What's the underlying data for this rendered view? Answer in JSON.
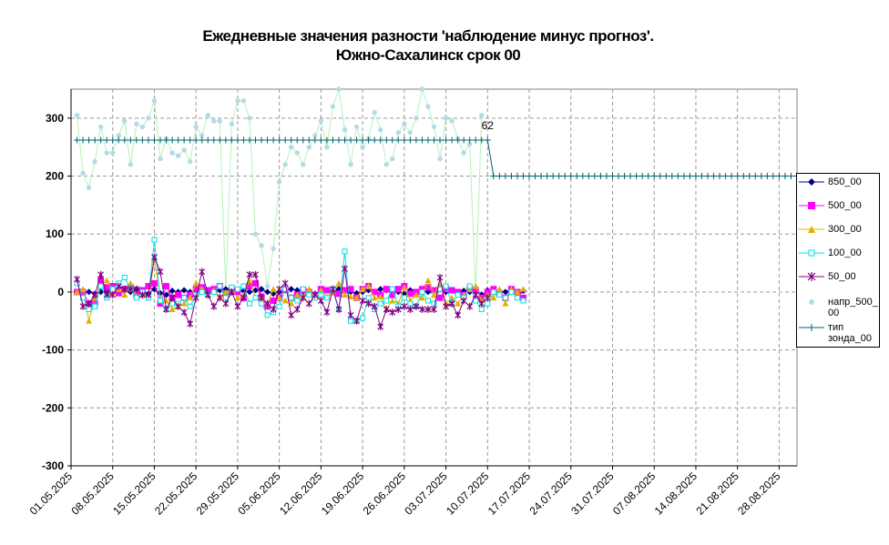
{
  "chart_data": {
    "type": "line",
    "title": "Ежедневные значения разности 'наблюдение минус прогноз'.",
    "subtitle": "Южно-Сахалинск      срок 00",
    "xlabel": "",
    "ylabel": "",
    "ylim": [
      -300,
      350
    ],
    "yticks": [
      "-300",
      "-200",
      "-100",
      "0",
      "100",
      "200",
      "300"
    ],
    "x_start": "01.05.2025",
    "x_end": "31.08.2025",
    "xticks": [
      "01.05.2025",
      "08.05.2025",
      "15.05.2025",
      "22.05.2025",
      "29.05.2025",
      "05.06.2025",
      "12.06.2025",
      "19.06.2025",
      "26.06.2025",
      "03.07.2025",
      "10.07.2025",
      "17.07.2025",
      "24.07.2025",
      "31.07.2025",
      "07.08.2025",
      "14.08.2025",
      "21.08.2025",
      "28.08.2025"
    ],
    "grid": true,
    "legend": "right",
    "annotation": "62",
    "series": [
      {
        "name": "850_00",
        "color": "#000080",
        "marker": "diamond",
        "values": [
          0,
          -2,
          0,
          -3,
          0,
          2,
          5,
          0,
          3,
          0,
          5,
          3,
          -3,
          5,
          -2,
          -5,
          2,
          0,
          3,
          0,
          3,
          0,
          -2,
          0,
          3,
          5,
          3,
          0,
          2,
          0,
          3,
          5,
          0,
          -3,
          0,
          3,
          5,
          3,
          0,
          2,
          -3,
          0,
          3,
          0,
          5,
          3,
          0,
          -2,
          0,
          3,
          0,
          5,
          3,
          2,
          0,
          -3,
          3,
          0,
          2,
          0,
          3,
          5,
          0,
          3,
          0,
          2,
          0,
          3,
          -5,
          3,
          0,
          2,
          0,
          5,
          -8,
          2
        ]
      },
      {
        "name": "500_00",
        "color": "#ff00ff",
        "marker": "square",
        "values": [
          0,
          0,
          -20,
          -20,
          20,
          8,
          10,
          -2,
          5,
          8,
          -5,
          3,
          10,
          15,
          -20,
          10,
          -10,
          -5,
          -10,
          -5,
          5,
          8,
          3,
          5,
          10,
          -5,
          3,
          0,
          -10,
          10,
          15,
          -8,
          -25,
          -15,
          -10,
          5,
          -10,
          -5,
          3,
          0,
          -5,
          5,
          3,
          0,
          -3,
          3,
          5,
          -10,
          5,
          10,
          0,
          -5,
          5,
          -5,
          5,
          10,
          -3,
          0,
          5,
          8,
          3,
          -10,
          5,
          3,
          0,
          -5,
          5,
          3,
          -10,
          0,
          5,
          -3,
          -10,
          5,
          0,
          -10
        ]
      },
      {
        "name": "300_00",
        "color": "#e0b000",
        "marker": "triangle",
        "values": [
          0,
          5,
          -50,
          -10,
          10,
          20,
          0,
          5,
          -5,
          15,
          -8,
          -5,
          -10,
          55,
          -10,
          -15,
          -30,
          -25,
          -20,
          -10,
          15,
          5,
          -5,
          3,
          -8,
          0,
          5,
          -10,
          -5,
          20,
          -10,
          -10,
          -20,
          5,
          -10,
          -15,
          -20,
          -5,
          -8,
          5,
          -10,
          3,
          -8,
          0,
          15,
          -5,
          -8,
          -10,
          5,
          10,
          -10,
          -8,
          -30,
          -15,
          -20,
          8,
          -15,
          -5,
          -10,
          20,
          -5,
          15,
          -20,
          -10,
          -20,
          -5,
          5,
          10,
          -15,
          -5,
          -10,
          5,
          -20,
          5,
          0,
          5
        ]
      },
      {
        "name": "100_00",
        "color": "#00e0e0",
        "marker": "square-open",
        "values": [
          15,
          -10,
          -30,
          -25,
          10,
          -10,
          5,
          15,
          25,
          5,
          -10,
          0,
          -10,
          90,
          -15,
          -30,
          -20,
          -20,
          -10,
          -25,
          -5,
          0,
          -5,
          0,
          10,
          -10,
          8,
          5,
          10,
          -20,
          -10,
          -20,
          -40,
          -35,
          -25,
          5,
          -10,
          -15,
          5,
          -5,
          -10,
          -5,
          -10,
          5,
          -30,
          70,
          -50,
          -50,
          -45,
          -10,
          -30,
          -20,
          -15,
          5,
          -25,
          -10,
          -20,
          -25,
          0,
          -15,
          -20,
          5,
          10,
          -20,
          -5,
          -10,
          10,
          -15,
          -30,
          -20,
          0,
          -5,
          -10,
          0,
          -10,
          -15
        ]
      },
      {
        "name": "50_00",
        "color": "#800080",
        "marker": "star",
        "values": [
          22,
          -25,
          -20,
          -5,
          30,
          -5,
          -5,
          10,
          5,
          5,
          5,
          -5,
          -5,
          60,
          35,
          -30,
          -10,
          -25,
          -35,
          -55,
          -10,
          35,
          -5,
          -25,
          -10,
          -20,
          0,
          -25,
          -10,
          30,
          30,
          -10,
          -20,
          -30,
          5,
          15,
          -40,
          -30,
          -10,
          -20,
          -5,
          -15,
          -35,
          5,
          -30,
          40,
          -40,
          -50,
          -15,
          -20,
          -25,
          -60,
          -30,
          -35,
          -30,
          -25,
          -30,
          -25,
          -30,
          -30,
          -30,
          25,
          -25,
          -20,
          -40,
          -15,
          -25,
          -5,
          -20,
          -10
        ]
      },
      {
        "name": "напр_500_00",
        "color": "#b0dce8",
        "marker": "dot",
        "values": [
          305,
          205,
          180,
          225,
          285,
          240,
          240,
          270,
          295,
          220,
          290,
          285,
          300,
          330,
          230,
          265,
          240,
          235,
          245,
          225,
          285,
          270,
          305,
          295,
          295,
          0,
          290,
          330,
          330,
          300,
          100,
          80,
          10,
          75,
          190,
          220,
          250,
          240,
          220,
          250,
          270,
          295,
          250,
          320,
          350,
          280,
          220,
          285,
          250,
          265,
          310,
          280,
          220,
          230,
          275,
          290,
          275,
          300,
          350,
          320,
          285,
          230,
          300,
          295,
          265,
          240,
          255,
          0,
          305
        ]
      },
      {
        "name": "тип зонда_00",
        "color": "#006070",
        "marker": "plus",
        "segments": [
          {
            "from": "02.05.2025",
            "to": "10.07.2025",
            "value": 262
          },
          {
            "from": "11.07.2025",
            "to": "31.08.2025",
            "value": 200
          }
        ]
      }
    ]
  }
}
